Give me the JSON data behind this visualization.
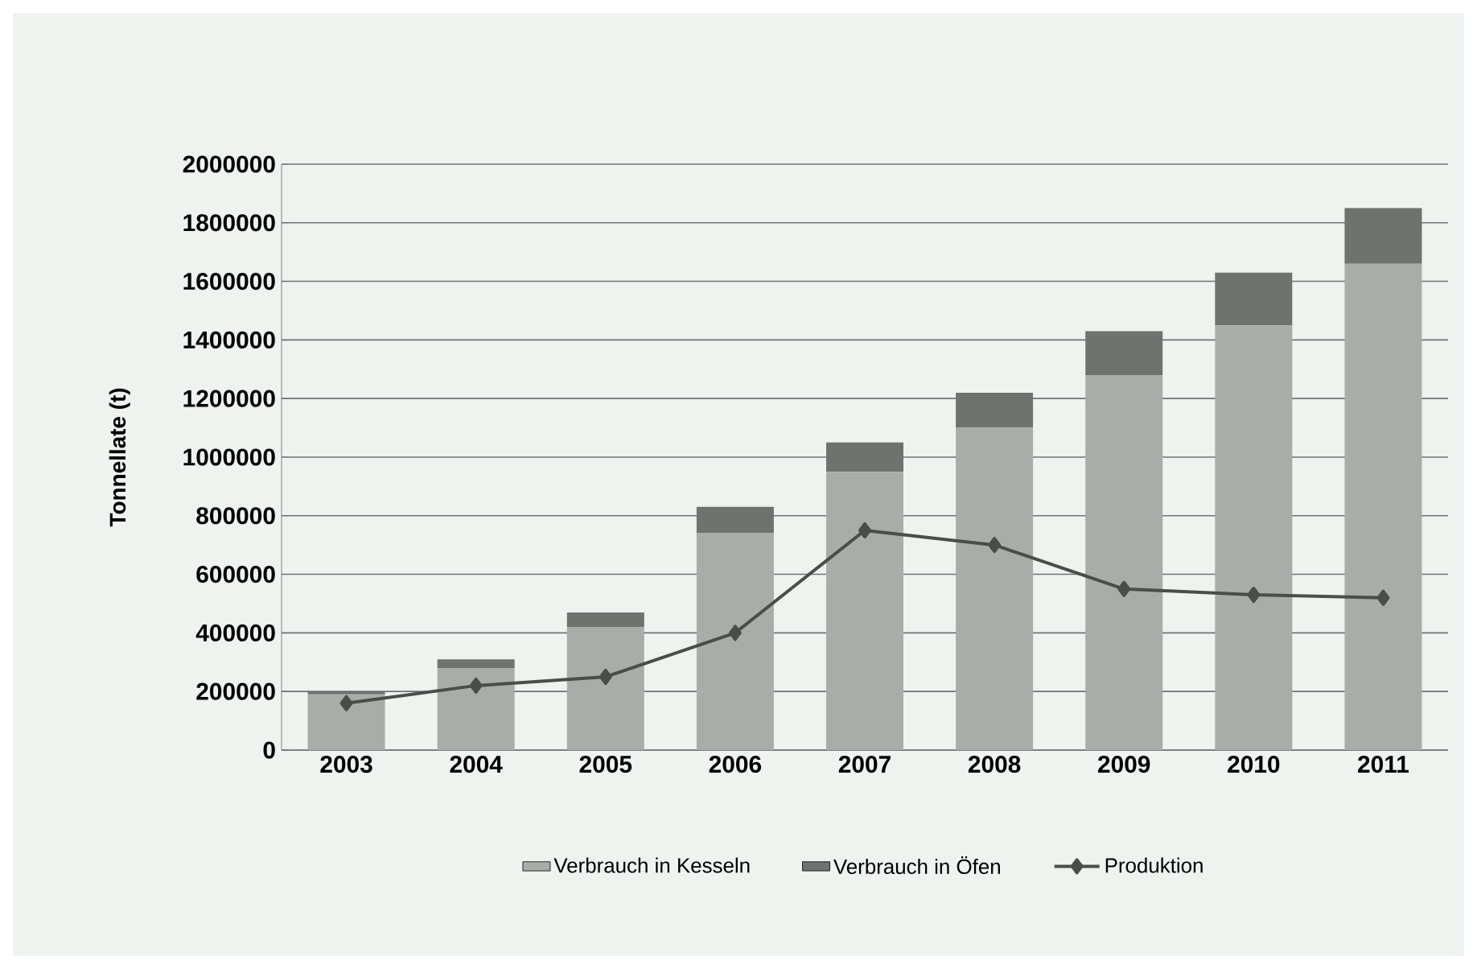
{
  "chart_data": {
    "type": "bar",
    "stacked": true,
    "ylabel": "Tonnellate (t)",
    "categories": [
      "2003",
      "2004",
      "2005",
      "2006",
      "2007",
      "2008",
      "2009",
      "2010",
      "2011"
    ],
    "series": [
      {
        "name": "Verbrauch in Kesseln",
        "color": "#a9ada9",
        "values": [
          190000,
          280000,
          420000,
          740000,
          950000,
          1100000,
          1280000,
          1450000,
          1660000
        ]
      },
      {
        "name": "Verbrauch in Öfen",
        "color": "#6f736f",
        "values": [
          10000,
          30000,
          50000,
          90000,
          100000,
          120000,
          150000,
          180000,
          190000
        ]
      },
      {
        "name": "Produktion",
        "type": "line",
        "color": "#4a4e4a",
        "marker": "diamond",
        "values": [
          160000,
          220000,
          250000,
          400000,
          750000,
          700000,
          550000,
          530000,
          520000
        ]
      }
    ],
    "ylim": [
      0,
      2000000
    ],
    "yticks": [
      0,
      200000,
      400000,
      600000,
      800000,
      1000000,
      1200000,
      1400000,
      1600000,
      1800000,
      2000000
    ],
    "grid": "y",
    "legend": "bottom"
  }
}
